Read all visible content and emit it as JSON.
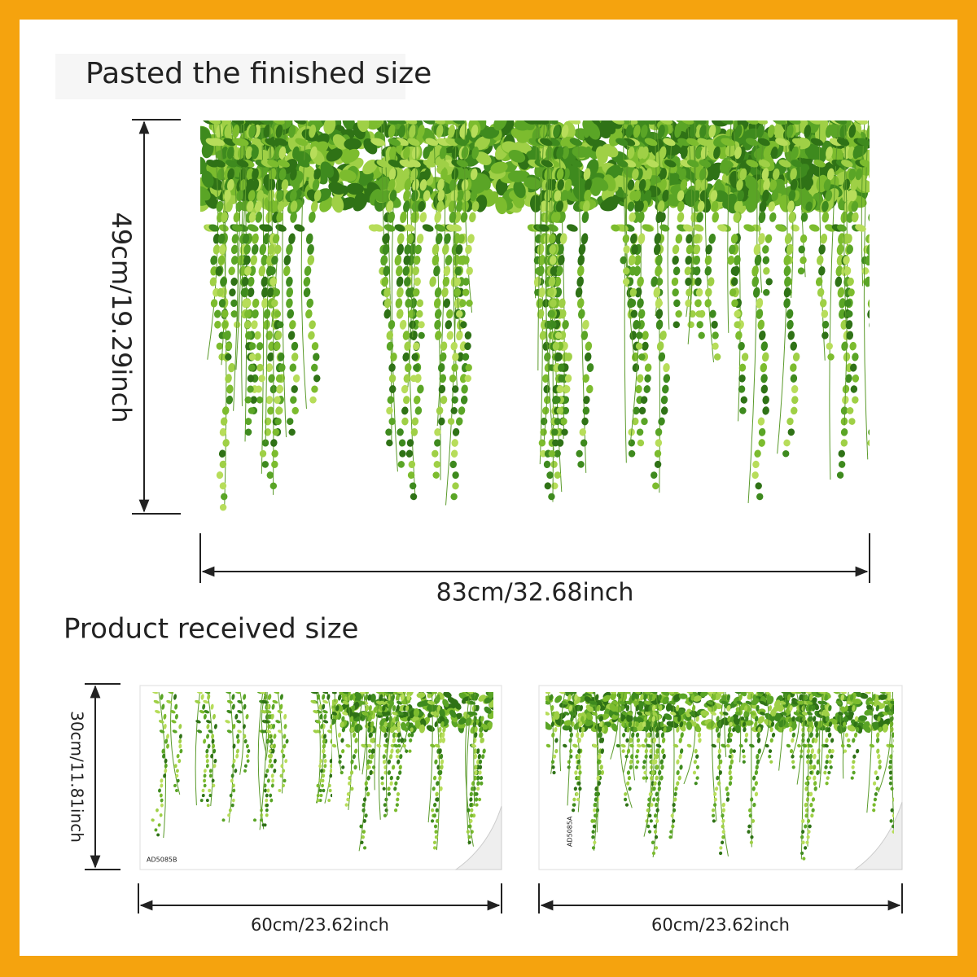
{
  "finished": {
    "title": "Pasted the finished size",
    "height": "49cm/19.29inch",
    "width": "83cm/32.68inch"
  },
  "received": {
    "title": "Product received size",
    "height": "30cm/11.81inch",
    "sheets": [
      {
        "code": "AD5085B",
        "width": "60cm/23.62inch"
      },
      {
        "code": "AD5085A",
        "width": "60cm/23.62inch"
      }
    ]
  }
}
